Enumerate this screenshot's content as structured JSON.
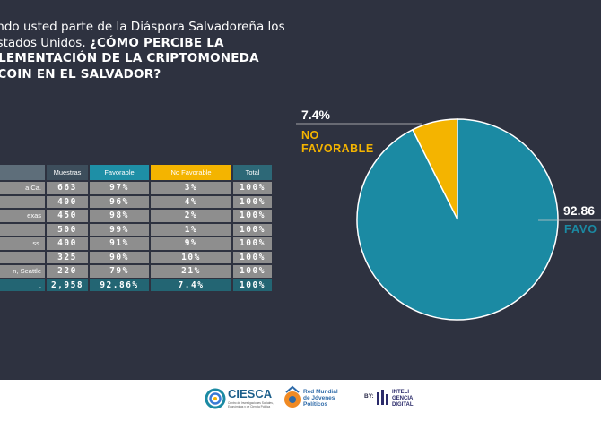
{
  "question": {
    "plain": "endo usted parte de la Diáspora Salvadoreña los Estados Unidos.",
    "bold": "¿CÓMO PERCIBE LA PLEMENTACIÓN DE LA CRIPTOMONEDA TCOIN EN EL SALVADOR?"
  },
  "table": {
    "headers": [
      "",
      "Muestras",
      "Favorable",
      "No Favorable",
      "Total"
    ],
    "rows": [
      {
        "city": "a Ca.",
        "muestras": "663",
        "favorable": "97%",
        "no_favorable": "3%",
        "total": "100%"
      },
      {
        "city": "",
        "muestras": "400",
        "favorable": "96%",
        "no_favorable": "4%",
        "total": "100%"
      },
      {
        "city": "exas",
        "muestras": "450",
        "favorable": "98%",
        "no_favorable": "2%",
        "total": "100%"
      },
      {
        "city": "",
        "muestras": "500",
        "favorable": "99%",
        "no_favorable": "1%",
        "total": "100%"
      },
      {
        "city": "ss.",
        "muestras": "400",
        "favorable": "91%",
        "no_favorable": "9%",
        "total": "100%"
      },
      {
        "city": "",
        "muestras": "325",
        "favorable": "90%",
        "no_favorable": "10%",
        "total": "100%"
      },
      {
        "city": "n, Seattle",
        "muestras": "220",
        "favorable": "79%",
        "no_favorable": "21%",
        "total": "100%"
      }
    ],
    "total_row": {
      "city": ".",
      "muestras": "2,958",
      "favorable": "92.86%",
      "no_favorable": "7.4%",
      "total": "100%"
    }
  },
  "chart_data": {
    "type": "pie",
    "slices": [
      {
        "label": "FAVORABLE",
        "value": 92.86,
        "display_value": "92.86",
        "display_label": "FAVO",
        "color": "#1b8aa3"
      },
      {
        "label": "NO FAVORABLE",
        "value": 7.4,
        "display_value": "7.4%",
        "display_label_line1": "NO",
        "display_label_line2": "FAVORABLE",
        "color": "#f4b400"
      }
    ]
  },
  "colors": {
    "background": "#2e3240",
    "favorable": "#1b8aa3",
    "no_favorable": "#f4b400",
    "total_row": "#236573",
    "cell": "#8e8e8e"
  },
  "footer": {
    "ciesca": "CIESCA",
    "ciesca_sub": "Centro de Investigaciones Sociales, Económicas y de Ciencia Política",
    "red_line1": "Red Mundial",
    "red_line2": "de Jóvenes",
    "red_line3": "Políticos",
    "by": "BY:",
    "inteli_line1": "INTELI",
    "inteli_line2": "GENCIA",
    "inteli_line3": "DIGITAL"
  }
}
